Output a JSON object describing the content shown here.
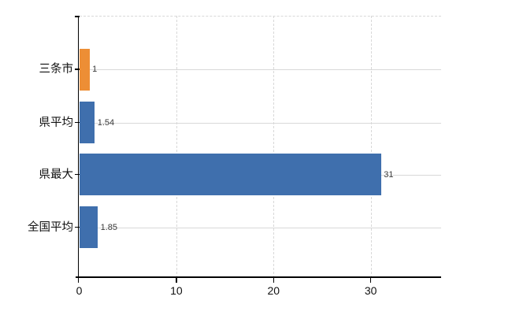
{
  "chart_data": {
    "type": "bar",
    "orientation": "horizontal",
    "title": "",
    "xlabel": "",
    "ylabel": "",
    "legend": "none",
    "grid": {
      "vertical": "dashed",
      "horizontal": "solid",
      "top_border": "dashed"
    },
    "categories": [
      "三条市",
      "県平均",
      "県最大",
      "全国平均"
    ],
    "values": [
      1,
      1.54,
      31,
      1.85
    ],
    "value_labels": [
      "1",
      "1.54",
      "31",
      "1.85"
    ],
    "bar_colors": [
      "#ED8E35",
      "#3F6FAD",
      "#3F6FAD",
      "#3F6FAD"
    ],
    "x_ticks": [
      0,
      10,
      20,
      30
    ],
    "x_tick_labels": [
      "0",
      "10",
      "20",
      "30"
    ],
    "xlim": [
      0,
      37.2
    ],
    "colors": {
      "bar_default": "#3F6FAD",
      "bar_highlight": "#ED8E35",
      "grid_line": "#D8D8D8",
      "axis_line": "#000000",
      "value_label": "#3A3A3A",
      "background": "#FFFFFF"
    }
  }
}
